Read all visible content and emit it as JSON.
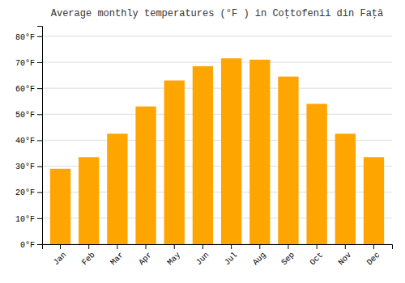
{
  "chart_data": {
    "type": "bar",
    "title": "Average monthly temperatures (°F ) in Coţtofenii din Faţă",
    "categories": [
      "Jan",
      "Feb",
      "Mar",
      "Apr",
      "May",
      "Jun",
      "Jul",
      "Aug",
      "Sep",
      "Oct",
      "Nov",
      "Dec"
    ],
    "values": [
      29,
      33.5,
      42.5,
      53,
      63,
      68.5,
      71.5,
      71,
      64.5,
      54,
      42.5,
      33.5
    ],
    "color": "#FFA500",
    "ylim": [
      0,
      84
    ],
    "yticks": [
      {
        "value": 0,
        "label": "0°F"
      },
      {
        "value": 10,
        "label": "10°F"
      },
      {
        "value": 20,
        "label": "20°F"
      },
      {
        "value": 30,
        "label": "30°F"
      },
      {
        "value": 40,
        "label": "40°F"
      },
      {
        "value": 50,
        "label": "50°F"
      },
      {
        "value": 60,
        "label": "60°F"
      },
      {
        "value": 70,
        "label": "70°F"
      },
      {
        "value": 80,
        "label": "80°F"
      }
    ],
    "grid": true
  }
}
